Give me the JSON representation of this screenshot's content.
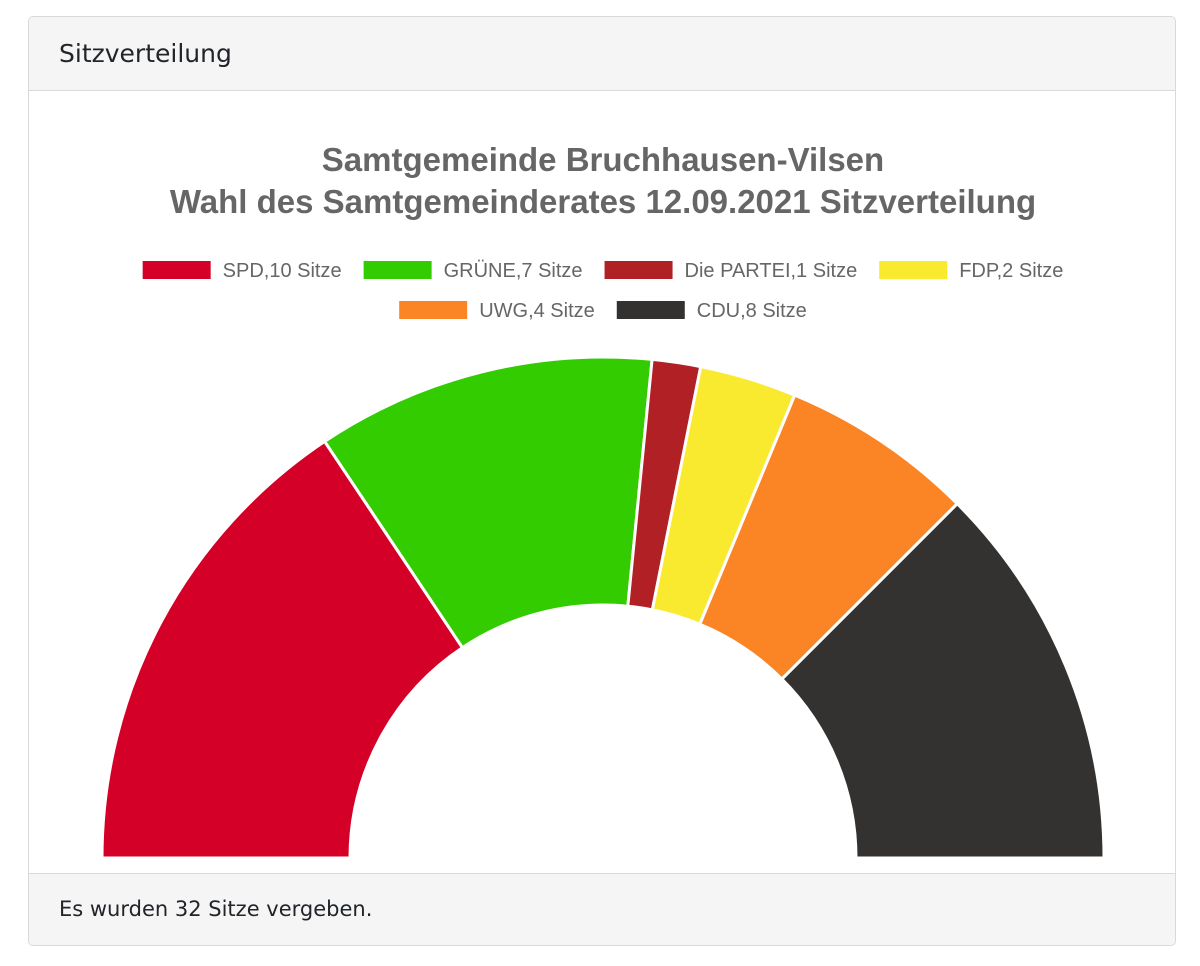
{
  "panel": {
    "header": "Sitzverteilung",
    "footer": "Es wurden 32 Sitze vergeben."
  },
  "chart_data": {
    "type": "pie",
    "variant": "half-doughnut",
    "title": [
      "Samtgemeinde Bruchhausen-Vilsen",
      "Wahl des Samtgemeinderates 12.09.2021 Sitzverteilung"
    ],
    "legend_position": "top",
    "categories": [
      "SPD",
      "GRÜNE",
      "Die PARTEI",
      "FDP",
      "UWG",
      "CDU"
    ],
    "legend_labels": [
      "SPD,10 Sitze",
      "GRÜNE,7 Sitze",
      "Die PARTEI,1 Sitze",
      "FDP,2 Sitze",
      "UWG,4 Sitze",
      "CDU,8 Sitze"
    ],
    "values": [
      10,
      7,
      1,
      2,
      4,
      8
    ],
    "colors": [
      "#d50027",
      "#33cc00",
      "#b02024",
      "#f9ea30",
      "#fb8425",
      "#333231"
    ],
    "total": 32
  }
}
